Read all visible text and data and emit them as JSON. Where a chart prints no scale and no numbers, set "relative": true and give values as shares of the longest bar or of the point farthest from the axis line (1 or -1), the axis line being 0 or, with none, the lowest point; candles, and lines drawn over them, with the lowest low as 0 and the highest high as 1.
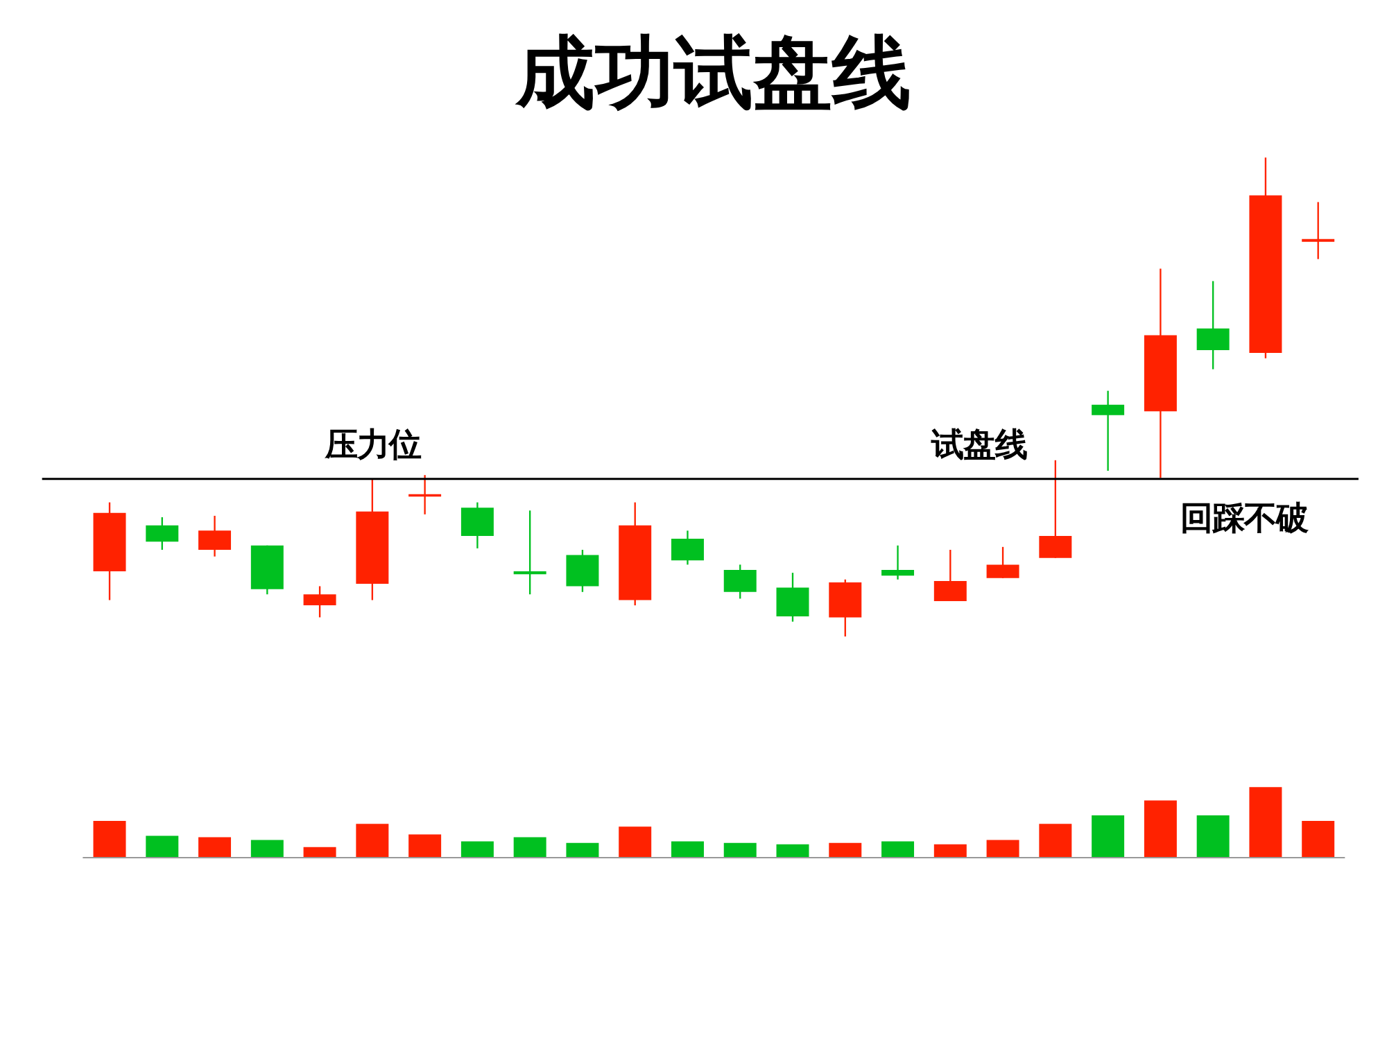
{
  "chart_data": [
    {
      "type": "candlestick",
      "title": "成功试盘线",
      "relative": true,
      "categories": [
        null,
        null,
        null,
        null,
        null,
        null,
        null,
        null,
        null,
        null,
        null,
        null,
        null,
        null,
        null,
        null,
        null,
        null,
        null,
        null,
        null,
        null,
        null,
        null
      ],
      "ohlc": [
        [
          0.136,
          0.28,
          0.076,
          0.258
        ],
        [
          0.232,
          0.249,
          0.181,
          0.198
        ],
        [
          0.181,
          0.252,
          0.167,
          0.221
        ],
        [
          0.19,
          0.19,
          0.088,
          0.099
        ],
        [
          0.065,
          0.105,
          0.04,
          0.088
        ],
        [
          0.11,
          0.329,
          0.076,
          0.261
        ],
        [
          0.292,
          0.337,
          0.255,
          0.297
        ],
        [
          0.269,
          0.28,
          0.184,
          0.21
        ],
        [
          0.136,
          0.263,
          0.088,
          0.13
        ],
        [
          0.17,
          0.181,
          0.093,
          0.105
        ],
        [
          0.076,
          0.28,
          0.065,
          0.232
        ],
        [
          0.204,
          0.221,
          0.15,
          0.159
        ],
        [
          0.139,
          0.15,
          0.079,
          0.093
        ],
        [
          0.102,
          0.133,
          0.031,
          0.042
        ],
        [
          0.04,
          0.119,
          0.0,
          0.113
        ],
        [
          0.139,
          0.19,
          0.119,
          0.127
        ],
        [
          0.074,
          0.181,
          0.074,
          0.116
        ],
        [
          0.122,
          0.187,
          0.122,
          0.15
        ],
        [
          0.164,
          0.368,
          0.164,
          0.21
        ],
        [
          0.484,
          0.513,
          0.346,
          0.462
        ],
        [
          0.47,
          0.768,
          0.331,
          0.629
        ],
        [
          0.643,
          0.742,
          0.558,
          0.598
        ],
        [
          0.592,
          1.0,
          0.581,
          0.921
        ],
        [
          0.824,
          0.907,
          0.788,
          0.83
        ]
      ],
      "colors": [
        "#ff2200",
        "#00c020",
        "#ff2200",
        "#00c020",
        "#ff2200",
        "#ff2200",
        "#ff2200",
        "#00c020",
        "#00c020",
        "#00c020",
        "#ff2200",
        "#00c020",
        "#00c020",
        "#00c020",
        "#ff2200",
        "#00c020",
        "#ff2200",
        "#ff2200",
        "#ff2200",
        "#00c020",
        "#ff2200",
        "#00c020",
        "#ff2200",
        "#ff2200"
      ],
      "ref_lines": [
        {
          "axis": "y",
          "value": 0.329,
          "label": "压力位",
          "color": "#000000"
        }
      ],
      "annotations": [
        "试盘线",
        "回踩不破"
      ]
    },
    {
      "type": "bar",
      "relative": true,
      "categories": [
        null,
        null,
        null,
        null,
        null,
        null,
        null,
        null,
        null,
        null,
        null,
        null,
        null,
        null,
        null,
        null,
        null,
        null,
        null,
        null,
        null,
        null,
        null,
        null
      ],
      "values": [
        0.52,
        0.31,
        0.29,
        0.25,
        0.15,
        0.48,
        0.33,
        0.23,
        0.29,
        0.21,
        0.44,
        0.23,
        0.21,
        0.19,
        0.21,
        0.23,
        0.19,
        0.25,
        0.48,
        0.6,
        0.81,
        0.6,
        1.0,
        0.52
      ],
      "colors": [
        "#ff2200",
        "#00c020",
        "#ff2200",
        "#00c020",
        "#ff2200",
        "#ff2200",
        "#ff2200",
        "#00c020",
        "#00c020",
        "#00c020",
        "#ff2200",
        "#00c020",
        "#00c020",
        "#00c020",
        "#ff2200",
        "#00c020",
        "#ff2200",
        "#ff2200",
        "#ff2200",
        "#00c020",
        "#ff2200",
        "#00c020",
        "#ff2200",
        "#ff2200"
      ]
    }
  ]
}
